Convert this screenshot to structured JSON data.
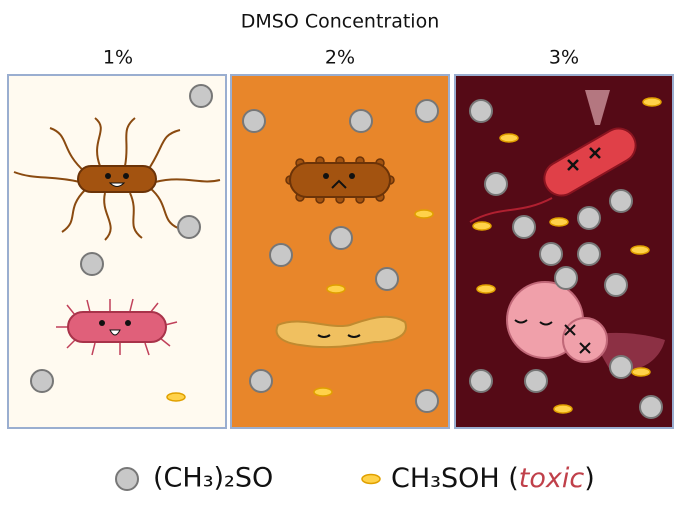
{
  "header": {
    "title": "DMSO Concentration"
  },
  "panels": [
    {
      "label": "1%"
    },
    {
      "label": "2%"
    },
    {
      "label": "3%"
    }
  ],
  "legend": [
    {
      "label": "(CH₃)₂SO"
    },
    {
      "label_parts": [
        "CH₃SOH (",
        "toxic",
        ")"
      ]
    }
  ]
}
